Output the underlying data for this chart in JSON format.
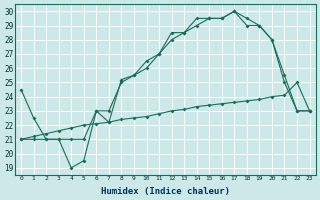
{
  "xlabel": "Humidex (Indice chaleur)",
  "bg_color": "#cce8e8",
  "line_color": "#1a6b5a",
  "grid_color": "#ffffff",
  "xlim": [
    -0.5,
    23.5
  ],
  "ylim": [
    18.5,
    30.5
  ],
  "yticks": [
    19,
    20,
    21,
    22,
    23,
    24,
    25,
    26,
    27,
    28,
    29,
    30
  ],
  "xticks": [
    0,
    1,
    2,
    3,
    4,
    5,
    6,
    7,
    8,
    9,
    10,
    11,
    12,
    13,
    14,
    15,
    16,
    17,
    18,
    19,
    20,
    21,
    22,
    23
  ],
  "line1_x": [
    0,
    1,
    2,
    3,
    4,
    5,
    6,
    7,
    8,
    9,
    10,
    11,
    12,
    13,
    14,
    15,
    16,
    17,
    18,
    19,
    20,
    21,
    22,
    23
  ],
  "line1_y": [
    24.5,
    22.5,
    21.0,
    21.0,
    19.0,
    19.5,
    23.0,
    23.0,
    25.0,
    25.5,
    26.5,
    27.0,
    28.5,
    28.5,
    29.5,
    29.5,
    29.5,
    30.0,
    29.5,
    29.0,
    28.0,
    25.0,
    23.0,
    23.0
  ],
  "line2_x": [
    0,
    1,
    2,
    3,
    4,
    5,
    6,
    7,
    8,
    9,
    10,
    11,
    12,
    13,
    14,
    15,
    16,
    17,
    18,
    19,
    20,
    21,
    22,
    23
  ],
  "line2_y": [
    21.0,
    21.2,
    21.4,
    21.6,
    21.8,
    22.0,
    22.1,
    22.2,
    22.4,
    22.5,
    22.6,
    22.8,
    23.0,
    23.1,
    23.3,
    23.4,
    23.5,
    23.6,
    23.7,
    23.8,
    24.0,
    24.1,
    25.0,
    23.0
  ],
  "line3_x": [
    0,
    1,
    2,
    3,
    4,
    5,
    6,
    7,
    8,
    9,
    10,
    11,
    12,
    13,
    14,
    15,
    16,
    17,
    18,
    19,
    20,
    21,
    22,
    23
  ],
  "line3_y": [
    21.0,
    21.0,
    21.0,
    21.0,
    21.0,
    21.0,
    23.0,
    22.2,
    25.2,
    25.5,
    26.0,
    27.0,
    28.0,
    28.5,
    29.0,
    29.5,
    29.5,
    30.0,
    29.0,
    29.0,
    28.0,
    25.5,
    23.0,
    23.0
  ]
}
